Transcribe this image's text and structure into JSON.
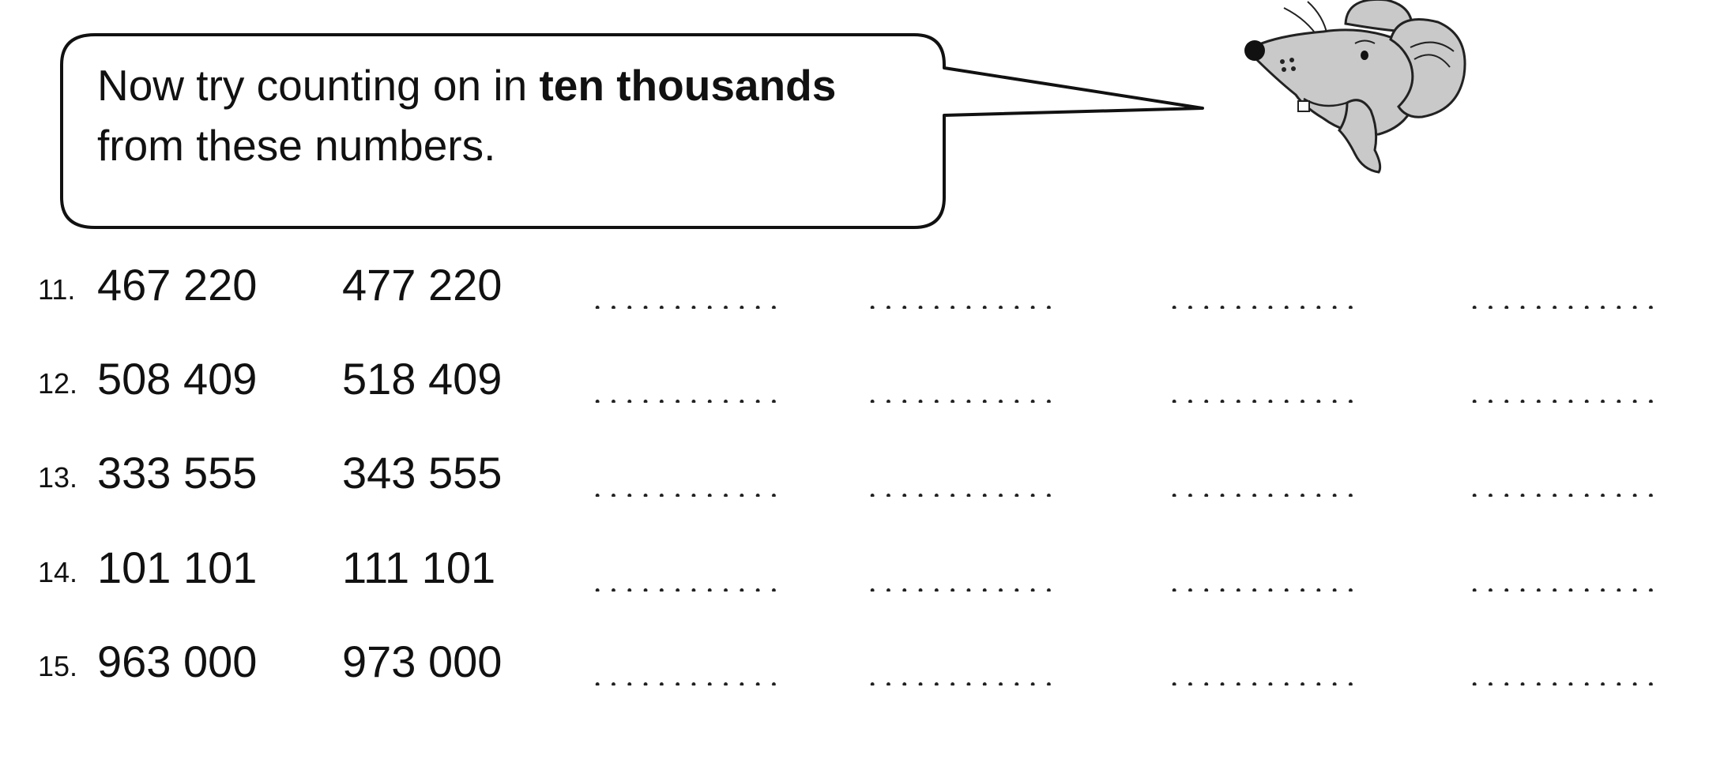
{
  "instruction": {
    "before_bold": "Now try counting on in ",
    "bold": "ten thousands",
    "after_bold": "from these numbers."
  },
  "mouse_icon": "mouse-thinking-illustration",
  "rows": [
    {
      "number": "11.",
      "start": "467 220",
      "next": "477 220"
    },
    {
      "number": "12.",
      "start": "508 409",
      "next": "518 409"
    },
    {
      "number": "13.",
      "start": "333 555",
      "next": "343 555"
    },
    {
      "number": "14.",
      "start": "101 101",
      "next": "111 101"
    },
    {
      "number": "15.",
      "start": "963 000",
      "next": "973 000"
    }
  ],
  "blanks_per_row": 4,
  "colors": {
    "ink": "#111111",
    "mouse_fill": "#c9c9c9",
    "background": "#ffffff"
  }
}
